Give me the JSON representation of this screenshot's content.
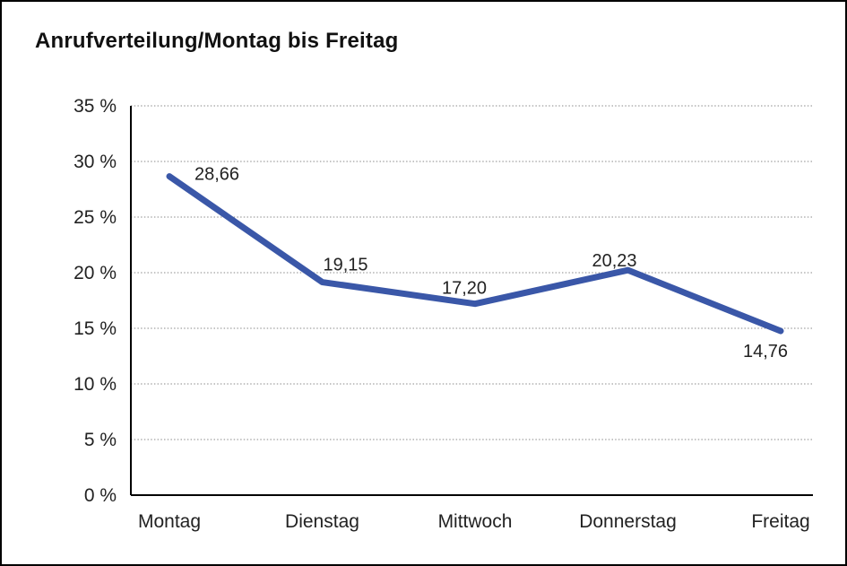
{
  "window": {
    "background_color": "#ffffff",
    "border_color": "#000000"
  },
  "chart": {
    "title": "Anrufverteilung/Montag bis Freitag"
  },
  "chart_data": {
    "type": "line",
    "title": "Anrufverteilung/Montag bis Freitag",
    "categories": [
      "Montag",
      "Dienstag",
      "Mittwoch",
      "Donnerstag",
      "Freitag"
    ],
    "series": [
      {
        "name": "Anrufverteilung",
        "values": [
          28.66,
          19.15,
          17.2,
          20.23,
          14.76
        ],
        "value_labels": [
          "28,66",
          "19,15",
          "17,20",
          "20,23",
          "14,76"
        ],
        "color": "#3A57A8"
      }
    ],
    "xlabel": "",
    "ylabel": "",
    "ylim": [
      0,
      35
    ],
    "y_ticks": [
      {
        "value": 35,
        "label": "35 %"
      },
      {
        "value": 30,
        "label": "30 %"
      },
      {
        "value": 25,
        "label": "25 %"
      },
      {
        "value": 20,
        "label": "20 %"
      },
      {
        "value": 15,
        "label": "15 %"
      },
      {
        "value": 10,
        "label": "10 %"
      },
      {
        "value": 5,
        "label": "5 %"
      },
      {
        "value": 0,
        "label": "0 %"
      }
    ],
    "grid": "horizontal-dotted",
    "grid_color": "#8a8a8a",
    "axis_color": "#000000",
    "text_color": "#222222",
    "legend": "none",
    "markers": "none"
  }
}
